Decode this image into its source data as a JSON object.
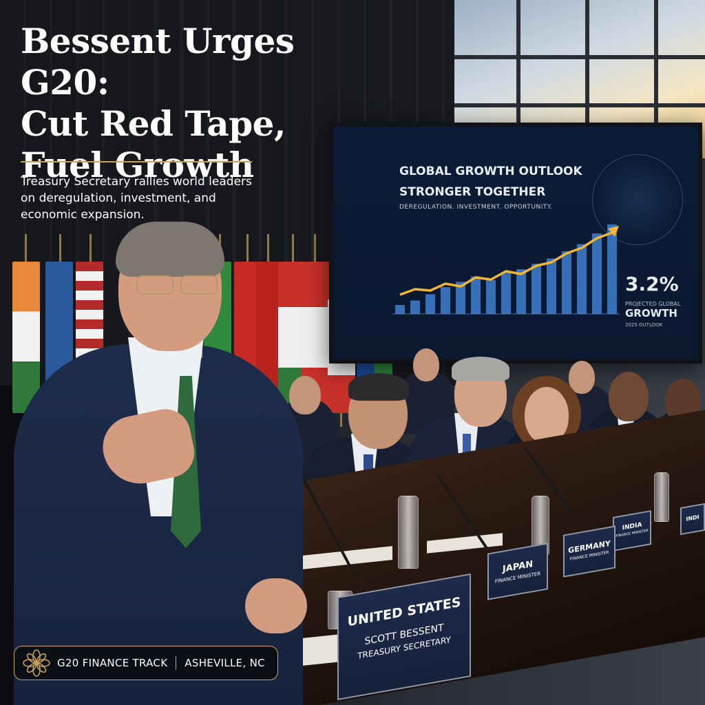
{
  "headline": {
    "line1": "Bessent Urges G20:",
    "line2": "Cut Red Tape,",
    "line3": "Fuel Growth"
  },
  "subhead": "Treasury Secretary rallies world leaders on deregulation, investment, and economic expansion.",
  "screen": {
    "title_line1": "GLOBAL GROWTH OUTLOOK",
    "title_line2": "STRONGER TOGETHER",
    "tagline": "DEREGULATION. INVESTMENT. OPPORTUNITY.",
    "stat_value": "3.2%",
    "stat_label": "PROJECTED GLOBAL",
    "stat_big": "GROWTH",
    "stat_year": "2025 OUTLOOK",
    "bar_values": [
      0.1,
      0.15,
      0.22,
      0.3,
      0.36,
      0.42,
      0.38,
      0.46,
      0.5,
      0.56,
      0.62,
      0.7,
      0.78,
      0.9,
      1.0
    ],
    "line_values": [
      0.08,
      0.16,
      0.14,
      0.24,
      0.2,
      0.33,
      0.3,
      0.42,
      0.38,
      0.5,
      0.55,
      0.68,
      0.76,
      0.9,
      0.98
    ]
  },
  "placards": {
    "us_country": "UNITED STATES",
    "us_name": "SCOTT BESSENT",
    "us_title": "TREASURY SECRETARY",
    "jp_country": "JAPAN",
    "jp_title": "FINANCE MINISTER",
    "de_country": "GERMANY",
    "de_title": "FINANCE MINISTER",
    "in_country": "INDIA",
    "in_title": "FINANCE MINISTER",
    "in2_country": "INDI"
  },
  "badge": {
    "track": "G20 FINANCE TRACK",
    "location": "ASHEVILLE, NC",
    "icon": "g20-flower-icon"
  },
  "colors": {
    "accent_gold": "#c9a35a",
    "screen_navy": "#0c1c36",
    "chart_line": "#f2b632",
    "chart_bar": "#3f7fd0"
  }
}
